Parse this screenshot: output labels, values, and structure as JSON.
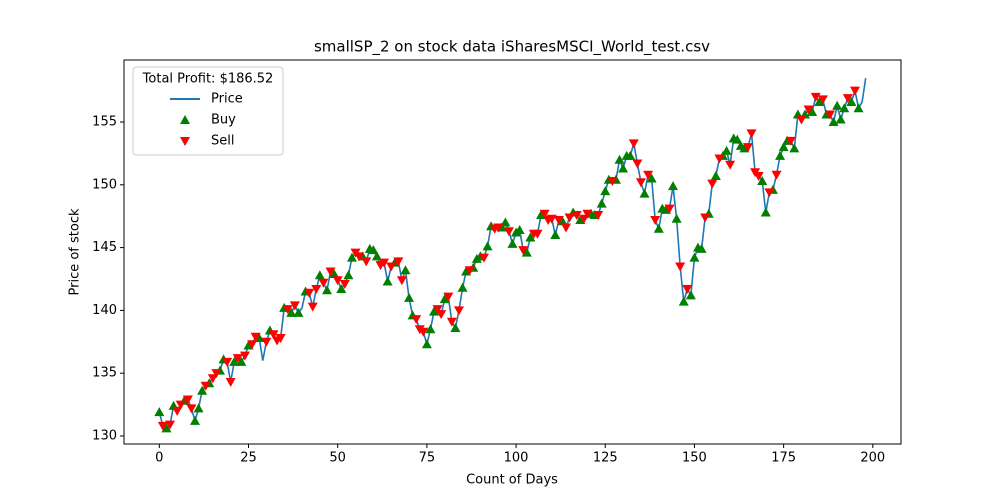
{
  "chart_data": {
    "type": "line",
    "title": "smallSP_2 on stock data iSharesMSCI_World_test.csv",
    "xlabel": "Count of Days",
    "ylabel": "Price of stock",
    "legend_title": "Total Profit: $186.52",
    "legend": "upper left",
    "xlim": [
      -9.9,
      207.9
    ],
    "xticks": [
      0,
      25,
      50,
      75,
      100,
      125,
      150,
      175,
      200
    ],
    "ylim": [
      129.36,
      159.94
    ],
    "yticks": [
      130,
      135,
      140,
      145,
      150,
      155
    ],
    "series": [
      {
        "name": "Price",
        "color": "#1f77b4",
        "marker": "line",
        "x": [
          0,
          1,
          2,
          3,
          4,
          5,
          6,
          7,
          8,
          9,
          10,
          11,
          12,
          13,
          14,
          15,
          16,
          17,
          18,
          19,
          20,
          21,
          22,
          23,
          24,
          25,
          26,
          27,
          28,
          29,
          30,
          31,
          32,
          33,
          34,
          35,
          36,
          37,
          38,
          39,
          40,
          41,
          42,
          43,
          44,
          45,
          46,
          47,
          48,
          49,
          50,
          51,
          52,
          53,
          54,
          55,
          56,
          57,
          58,
          59,
          60,
          61,
          62,
          63,
          64,
          65,
          66,
          67,
          68,
          69,
          70,
          71,
          72,
          73,
          74,
          75,
          76,
          77,
          78,
          79,
          80,
          81,
          82,
          83,
          84,
          85,
          86,
          87,
          88,
          89,
          90,
          91,
          92,
          93,
          94,
          95,
          96,
          97,
          98,
          99,
          100,
          101,
          102,
          103,
          104,
          105,
          106,
          107,
          108,
          109,
          110,
          111,
          112,
          113,
          114,
          115,
          116,
          117,
          118,
          119,
          120,
          121,
          122,
          123,
          124,
          125,
          126,
          127,
          128,
          129,
          130,
          131,
          132,
          133,
          134,
          135,
          136,
          137,
          138,
          139,
          140,
          141,
          142,
          143,
          144,
          145,
          146,
          147,
          148,
          149,
          150,
          151,
          152,
          153,
          154,
          155,
          156,
          157,
          158,
          159,
          160,
          161,
          162,
          163,
          164,
          165,
          166,
          167,
          168,
          169,
          170,
          171,
          172,
          173,
          174,
          175,
          176,
          177,
          178,
          179,
          180,
          181,
          182,
          183,
          184,
          185,
          186,
          187,
          188,
          189,
          190,
          191,
          192,
          193,
          194,
          195,
          196,
          197,
          198
        ],
        "values": [
          131.9,
          130.8,
          130.6,
          130.9,
          132.4,
          132.0,
          132.5,
          132.8,
          132.9,
          132.2,
          131.2,
          132.2,
          133.6,
          134.0,
          134.2,
          134.6,
          135.0,
          135.2,
          136.1,
          135.9,
          134.3,
          135.9,
          136.2,
          135.9,
          136.4,
          137.2,
          137.3,
          137.9,
          137.8,
          136.0,
          137.5,
          138.4,
          138.1,
          137.6,
          137.8,
          140.2,
          140.1,
          139.8,
          140.4,
          139.8,
          140.2,
          141.5,
          141.4,
          140.3,
          141.7,
          142.8,
          142.2,
          141.6,
          143.1,
          142.9,
          142.4,
          141.7,
          142.1,
          142.8,
          144.2,
          144.6,
          144.3,
          144.3,
          143.9,
          144.9,
          144.8,
          144.3,
          143.6,
          143.8,
          142.3,
          143.5,
          143.8,
          143.9,
          142.4,
          143.2,
          141.0,
          139.6,
          139.3,
          138.5,
          138.3,
          137.3,
          138.5,
          139.9,
          140.1,
          139.7,
          140.9,
          141.1,
          139.1,
          138.6,
          140.0,
          141.8,
          143.1,
          143.2,
          143.4,
          144.1,
          144.3,
          144.2,
          145.1,
          146.7,
          146.5,
          146.6,
          146.6,
          147.0,
          146.3,
          145.3,
          146.2,
          146.4,
          144.8,
          144.6,
          145.8,
          146.1,
          146.1,
          147.6,
          147.7,
          147.2,
          147.3,
          146.0,
          147.2,
          147.1,
          146.6,
          147.4,
          147.8,
          147.6,
          147.2,
          147.3,
          147.7,
          147.7,
          147.6,
          147.6,
          148.5,
          149.5,
          150.4,
          150.3,
          150.4,
          152.0,
          151.3,
          152.3,
          152.3,
          153.3,
          151.7,
          150.2,
          149.3,
          150.8,
          150.5,
          147.2,
          146.5,
          148.1,
          148.0,
          148.1,
          149.9,
          147.3,
          143.5,
          140.7,
          141.7,
          141.2,
          144.2,
          145.0,
          144.9,
          147.4,
          147.7,
          150.1,
          150.7,
          152.1,
          152.3,
          152.7,
          151.6,
          153.7,
          153.6,
          153.1,
          152.9,
          153.0,
          154.1,
          151.0,
          150.7,
          150.3,
          147.8,
          149.4,
          149.6,
          150.8,
          152.3,
          153.0,
          153.5,
          153.5,
          152.9,
          155.6,
          155.2,
          155.6,
          156.0,
          155.8,
          157.0,
          156.6,
          156.8,
          155.6,
          155.6,
          155.0,
          156.3,
          155.2,
          156.1,
          156.9,
          156.6,
          157.5,
          156.1,
          156.6,
          158.5
        ]
      },
      {
        "name": "Buy",
        "color": "green",
        "marker": "up",
        "x": [
          0,
          2,
          4,
          7,
          10,
          11,
          12,
          14,
          17,
          18,
          21,
          23,
          25,
          28,
          31,
          35,
          37,
          39,
          41,
          45,
          47,
          49,
          51,
          53,
          54,
          57,
          59,
          60,
          61,
          64,
          66,
          69,
          70,
          71,
          75,
          76,
          77,
          80,
          83,
          85,
          86,
          88,
          89,
          90,
          92,
          93,
          96,
          97,
          99,
          100,
          101,
          103,
          104,
          107,
          111,
          113,
          116,
          118,
          121,
          122,
          124,
          125,
          126,
          128,
          129,
          130,
          131,
          132,
          136,
          138,
          140,
          141,
          142,
          144,
          145,
          147,
          149,
          150,
          151,
          152,
          154,
          156,
          158,
          159,
          161,
          162,
          163,
          164,
          169,
          170,
          172,
          174,
          175,
          176,
          178,
          179,
          181,
          183,
          185,
          187,
          189,
          190,
          191,
          192,
          194,
          196
        ]
      },
      {
        "name": "Sell",
        "color": "red",
        "marker": "down",
        "x": [
          1,
          3,
          5,
          6,
          8,
          9,
          13,
          15,
          16,
          19,
          20,
          22,
          24,
          26,
          27,
          30,
          32,
          33,
          34,
          36,
          38,
          42,
          43,
          44,
          46,
          48,
          50,
          52,
          55,
          56,
          58,
          62,
          63,
          65,
          67,
          68,
          72,
          73,
          74,
          78,
          79,
          81,
          82,
          84,
          87,
          91,
          94,
          95,
          98,
          102,
          105,
          106,
          108,
          109,
          110,
          112,
          114,
          115,
          117,
          119,
          120,
          123,
          127,
          133,
          134,
          135,
          137,
          139,
          143,
          146,
          148,
          153,
          155,
          157,
          160,
          165,
          166,
          167,
          168,
          171,
          173,
          177,
          180,
          182,
          184,
          186,
          188,
          193,
          195
        ]
      }
    ]
  }
}
